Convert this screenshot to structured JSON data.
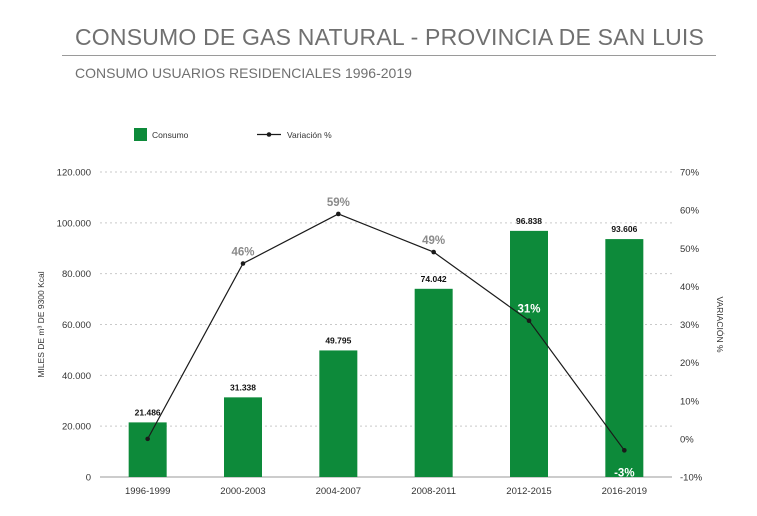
{
  "chart_data": {
    "type": "bar",
    "title": "CONSUMO DE GAS NATURAL - PROVINCIA DE SAN LUIS",
    "subtitle": "CONSUMO USUARIOS RESIDENCIALES 1996-2019",
    "categories": [
      "1996-1999",
      "2000-2003",
      "2004-2007",
      "2008-2011",
      "2012-2015",
      "2016-2019"
    ],
    "series": [
      {
        "name": "Consumo",
        "type": "bar",
        "axis": "left",
        "values": [
          21486,
          31338,
          49795,
          74042,
          96838,
          93606
        ],
        "labels": [
          "21.486",
          "31.338",
          "49.795",
          "74.042",
          "96.838",
          "93.606"
        ]
      },
      {
        "name": "Variación %",
        "type": "line",
        "axis": "right",
        "values": [
          0,
          46,
          59,
          49,
          31,
          -3
        ],
        "labels": [
          "",
          "46%",
          "59%",
          "49%",
          "31%",
          "-3%"
        ]
      }
    ],
    "ylabel": "MILES DE m³ DE 9300 Kcal",
    "ylabel_right": "VARIACIÓN %",
    "ylim": [
      0,
      120000
    ],
    "ylim_right": [
      -10,
      70
    ],
    "y_ticks": [
      "0",
      "20.000",
      "40.000",
      "60.000",
      "80.000",
      "100.000",
      "120.000"
    ],
    "y_ticks_right": [
      "-10%",
      "0%",
      "10%",
      "20%",
      "30%",
      "40%",
      "50%",
      "60%",
      "70%"
    ],
    "grid": true,
    "legend_position": "top-left",
    "colors": {
      "bar": "#0d8a3a",
      "line": "#1a1a1a",
      "text": "#707070"
    }
  }
}
